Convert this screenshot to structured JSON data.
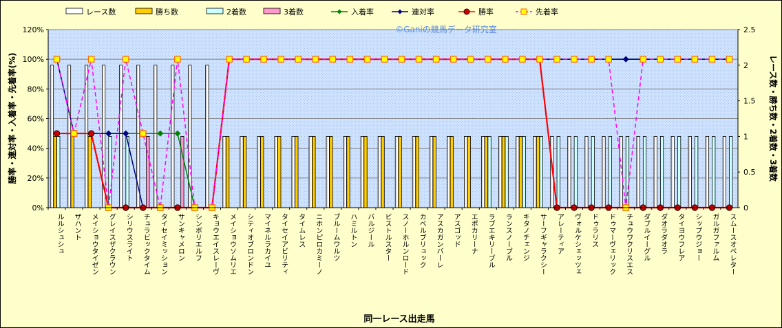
{
  "chart_data": {
    "type": "bar",
    "title": "",
    "watermark": "©Ganiの競馬データ研究室",
    "xlabel": "同一レース出走馬",
    "ylabel_left": "勝率・連対率・入着率・先着率(%)",
    "ylabel_right": "レース数・勝ち数・2着数・3着数",
    "ylim_left": [
      0,
      120
    ],
    "ylim_right": [
      0,
      2.5
    ],
    "yticks_left": [
      "0%",
      "20%",
      "40%",
      "60%",
      "80%",
      "100%",
      "120%"
    ],
    "yticks_right": [
      "0",
      "0.5",
      "1",
      "1.5",
      "2",
      "2.5"
    ],
    "grid": true,
    "legend_position": "top",
    "categories": [
      "ルルシュシュ",
      "ザハント",
      "メイショウタイゼン",
      "グレイスザクラウン",
      "シリウスライト",
      "チュラビックタイム",
      "タイセイミッション",
      "サンキャメロン",
      "シンボリエルフ",
      "キョウエイスレーヴ",
      "メイショウソムリエ",
      "シティオブロンドン",
      "マイネルラカイユ",
      "タイセイアビリティ",
      "タイムレス",
      "ニホンピロカミーノ",
      "ブルームワルツ",
      "ハミルトン",
      "バルジール",
      "ビストルスター",
      "スノーホルンロード",
      "カベルブリュック",
      "アスカガンバーレ",
      "アスゴッド",
      "エポカリーナ",
      "ラブエキリーブル",
      "ランスノーブル",
      "キタノチェンジ",
      "サーフギャラクシー",
      "アレーティア",
      "ヴォルケシェッツェ",
      "ドゥラリス",
      "ドゥマーヴェリック",
      "チュウワクリスエス",
      "ダブルイーグル",
      "ダオラダオラ",
      "タイヨウフレア",
      "シップウジョー",
      "ガルガファルム",
      "スムースオペレター"
    ],
    "series": [
      {
        "name": "レース数",
        "axis": "right",
        "kind": "bar",
        "color": "#ffffff",
        "values": [
          2,
          2,
          2,
          2,
          2,
          2,
          2,
          2,
          2,
          2,
          1,
          1,
          1,
          1,
          1,
          1,
          1,
          1,
          1,
          1,
          1,
          1,
          1,
          1,
          1,
          1,
          1,
          1,
          1,
          1,
          1,
          1,
          1,
          1,
          1,
          1,
          1,
          1,
          1,
          1
        ]
      },
      {
        "name": "勝ち数",
        "axis": "right",
        "kind": "bar",
        "color": "#ffcc00",
        "values": [
          1,
          1,
          1,
          0,
          0,
          0,
          0,
          0,
          0,
          0,
          1,
          1,
          1,
          1,
          1,
          1,
          1,
          1,
          1,
          1,
          1,
          1,
          1,
          1,
          1,
          1,
          1,
          1,
          1,
          0,
          0,
          0,
          0,
          0,
          0,
          0,
          0,
          0,
          0,
          0
        ]
      },
      {
        "name": "2着数",
        "axis": "right",
        "kind": "bar",
        "color": "#ccffff",
        "values": [
          1,
          0,
          0,
          1,
          1,
          0,
          0,
          0,
          0,
          0,
          0,
          0,
          0,
          0,
          0,
          0,
          0,
          0,
          0,
          0,
          0,
          0,
          0,
          0,
          0,
          1,
          1,
          1,
          1,
          1,
          1,
          1,
          1,
          1,
          1,
          1,
          1,
          1,
          1,
          1
        ]
      },
      {
        "name": "3着数",
        "axis": "right",
        "kind": "bar",
        "color": "#ff99cc",
        "values": [
          0,
          0,
          0,
          0,
          0,
          1,
          0,
          1,
          0,
          0,
          0,
          0,
          0,
          0,
          0,
          0,
          0,
          0,
          0,
          0,
          0,
          0,
          0,
          0,
          0,
          0,
          0,
          0,
          0,
          0,
          0,
          0,
          0,
          0,
          0,
          0,
          0,
          0,
          0,
          0
        ]
      },
      {
        "name": "入着率",
        "axis": "left",
        "kind": "line",
        "color": "#008000",
        "marker": "diamond",
        "values": [
          100,
          50,
          50,
          50,
          50,
          50,
          50,
          50,
          0,
          0,
          100,
          100,
          100,
          100,
          100,
          100,
          100,
          100,
          100,
          100,
          100,
          100,
          100,
          100,
          100,
          100,
          100,
          100,
          100,
          100,
          100,
          100,
          100,
          100,
          100,
          100,
          100,
          100,
          100,
          100
        ]
      },
      {
        "name": "連対率",
        "axis": "left",
        "kind": "line",
        "color": "#000080",
        "marker": "diamond",
        "values": [
          100,
          50,
          50,
          50,
          50,
          0,
          0,
          0,
          0,
          0,
          100,
          100,
          100,
          100,
          100,
          100,
          100,
          100,
          100,
          100,
          100,
          100,
          100,
          100,
          100,
          100,
          100,
          100,
          100,
          100,
          100,
          100,
          100,
          100,
          100,
          100,
          100,
          100,
          100,
          100
        ]
      },
      {
        "name": "勝率",
        "axis": "left",
        "kind": "line",
        "color": "#ff0000",
        "marker": "circle",
        "values": [
          50,
          50,
          50,
          0,
          0,
          0,
          0,
          0,
          0,
          0,
          100,
          100,
          100,
          100,
          100,
          100,
          100,
          100,
          100,
          100,
          100,
          100,
          100,
          100,
          100,
          100,
          100,
          100,
          100,
          0,
          0,
          0,
          0,
          0,
          0,
          0,
          0,
          0,
          0,
          0
        ]
      },
      {
        "name": "先着率",
        "axis": "left",
        "kind": "line",
        "color": "#ff00ff",
        "marker": "square",
        "dashed": true,
        "values": [
          100,
          50,
          100,
          0,
          100,
          50,
          0,
          100,
          0,
          0,
          100,
          100,
          100,
          100,
          100,
          100,
          100,
          100,
          100,
          100,
          100,
          100,
          100,
          100,
          100,
          100,
          100,
          100,
          100,
          100,
          100,
          100,
          100,
          0,
          100,
          100,
          100,
          100,
          100,
          100
        ]
      }
    ]
  }
}
